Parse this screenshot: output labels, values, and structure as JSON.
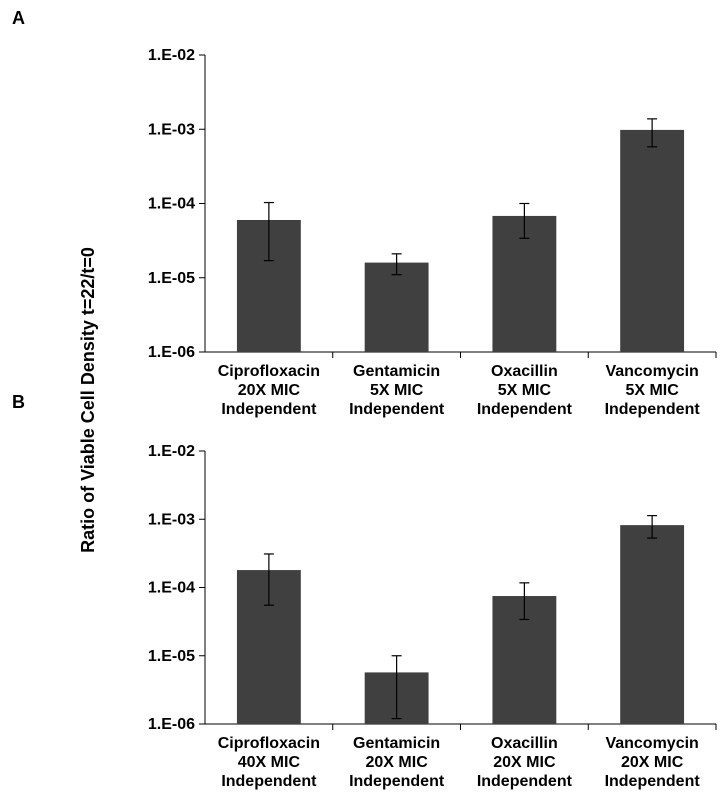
{
  "ylabel": "Ratio of Viable Cell Density  t=22/t=0",
  "bar_color": "#404040",
  "chart_data": [
    {
      "type": "bar",
      "panel": "A",
      "scale": "log",
      "ylim": [
        1e-06,
        0.01
      ],
      "yticks": [
        {
          "value": 0.01,
          "label": "1.E-02"
        },
        {
          "value": 0.001,
          "label": "1.E-03"
        },
        {
          "value": 0.0001,
          "label": "1.E-04"
        },
        {
          "value": 1e-05,
          "label": "1.E-05"
        },
        {
          "value": 1e-06,
          "label": "1.E-06"
        }
      ],
      "categories": [
        [
          "Ciprofloxacin",
          "20X MIC",
          "Independent"
        ],
        [
          "Gentamicin",
          "5X MIC",
          "Independent"
        ],
        [
          "Oxacillin",
          "5X MIC",
          "Independent"
        ],
        [
          "Vancomycin",
          "5X MIC",
          "Independent"
        ]
      ],
      "values": [
        6e-05,
        1.6e-05,
        6.8e-05,
        0.00098
      ],
      "error_low": [
        1.7e-05,
        1.1e-05,
        3.4e-05,
        0.00058
      ],
      "error_high": [
        0.000103,
        2.1e-05,
        0.0001,
        0.00138
      ]
    },
    {
      "type": "bar",
      "panel": "B",
      "scale": "log",
      "ylim": [
        1e-06,
        0.01
      ],
      "yticks": [
        {
          "value": 0.01,
          "label": "1.E-02"
        },
        {
          "value": 0.001,
          "label": "1.E-03"
        },
        {
          "value": 0.0001,
          "label": "1.E-04"
        },
        {
          "value": 1e-05,
          "label": "1.E-05"
        },
        {
          "value": 1e-06,
          "label": "1.E-06"
        }
      ],
      "categories": [
        [
          "Ciprofloxacin",
          "40X MIC",
          "Independent"
        ],
        [
          "Gentamicin",
          "20X MIC",
          "Independent"
        ],
        [
          "Oxacillin",
          "20X MIC",
          "Independent"
        ],
        [
          "Vancomycin",
          "20X MIC",
          "Independent"
        ]
      ],
      "values": [
        0.00018,
        5.7e-06,
        7.5e-05,
        0.00082
      ],
      "error_low": [
        5.5e-05,
        1.2e-06,
        3.4e-05,
        0.00053
      ],
      "error_high": [
        0.00031,
        1e-05,
        0.000117,
        0.00113
      ]
    }
  ]
}
